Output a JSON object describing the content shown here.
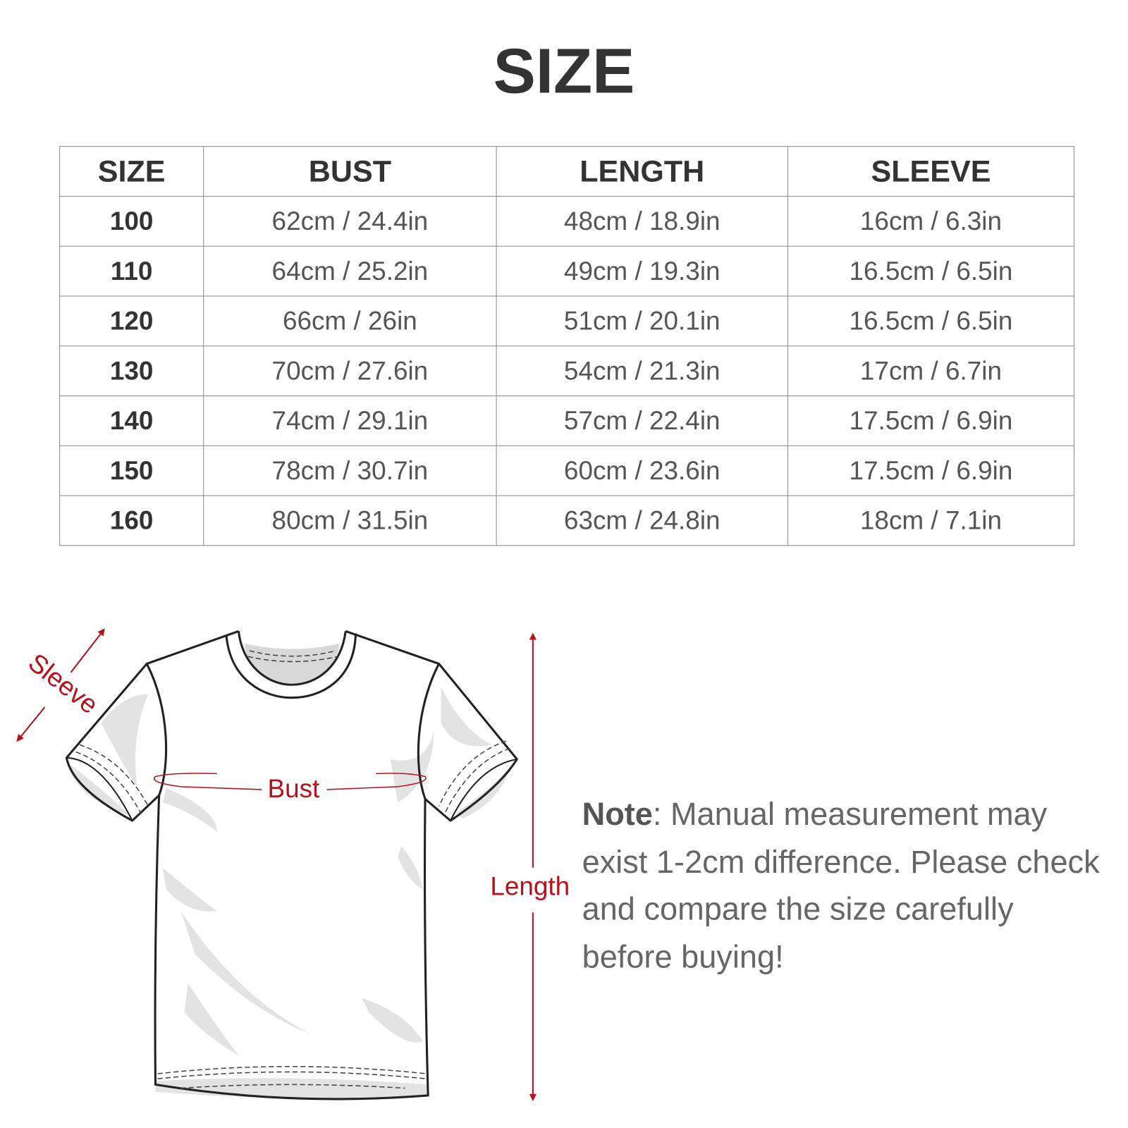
{
  "title": "SIZE",
  "table": {
    "headers": [
      "SIZE",
      "BUST",
      "LENGTH",
      "SLEEVE"
    ],
    "rows": [
      [
        "100",
        "62cm / 24.4in",
        "48cm / 18.9in",
        "16cm / 6.3in"
      ],
      [
        "110",
        "64cm / 25.2in",
        "49cm / 19.3in",
        "16.5cm / 6.5in"
      ],
      [
        "120",
        "66cm / 26in",
        "51cm / 20.1in",
        "16.5cm / 6.5in"
      ],
      [
        "130",
        "70cm / 27.6in",
        "54cm / 21.3in",
        "17cm / 6.7in"
      ],
      [
        "140",
        "74cm / 29.1in",
        "57cm / 22.4in",
        "17.5cm / 6.9in"
      ],
      [
        "150",
        "78cm / 30.7in",
        "60cm / 23.6in",
        "17.5cm / 6.9in"
      ],
      [
        "160",
        "80cm / 31.5in",
        "63cm / 24.8in",
        "18cm / 7.1in"
      ]
    ]
  },
  "diagram": {
    "labels": {
      "sleeve": "Sleeve",
      "bust": "Bust",
      "length": "Length"
    },
    "accent_color": "#b5121b"
  },
  "note": {
    "label": "Note",
    "text": ": Manual measurement may exist 1-2cm difference. Please check and compare the size carefully before buying!"
  }
}
